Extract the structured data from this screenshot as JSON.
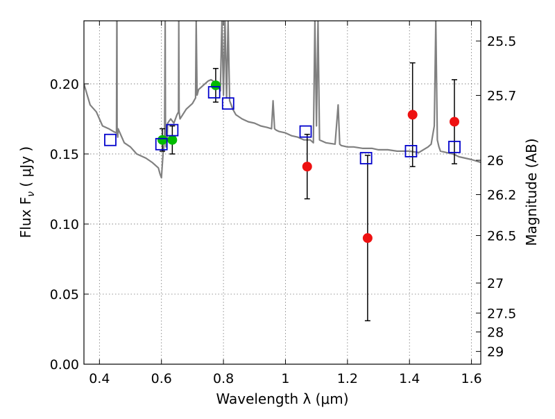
{
  "chart_data": {
    "type": "scatter",
    "xlabel": "Wavelength  λ (μm)",
    "ylabel": "Flux  F",
    "ylabel_sub": "ν",
    "ylabel_unit": " ( μJy )",
    "ylabel_right": "Magnitude (AB)",
    "xlim": [
      0.35,
      1.63
    ],
    "ylim": [
      0.0,
      0.245
    ],
    "grid": true,
    "x_ticks": [
      0.4,
      0.6,
      0.8,
      1.0,
      1.2,
      1.4,
      1.6
    ],
    "x_tick_labels": [
      "0.4",
      "0.6",
      "0.8",
      "1",
      "1.2",
      "1.4",
      "1.6"
    ],
    "y_ticks": [
      0.0,
      0.05,
      0.1,
      0.15,
      0.2
    ],
    "y_tick_labels": [
      "0.00",
      "0.05",
      "0.10",
      "0.15",
      "0.20"
    ],
    "right_ticks": [
      {
        "label": "25.5",
        "flux": 0.2306
      },
      {
        "label": "25.7",
        "flux": 0.1918
      },
      {
        "label": "26",
        "flux": 0.1455
      },
      {
        "label": "26.2",
        "flux": 0.121
      },
      {
        "label": "26.5",
        "flux": 0.0918
      },
      {
        "label": "27",
        "flux": 0.0579
      },
      {
        "label": "27.5",
        "flux": 0.0365
      },
      {
        "label": "28",
        "flux": 0.023
      },
      {
        "label": "29",
        "flux": 0.0091
      }
    ],
    "series": [
      {
        "name": "",
        "kind": "model-spectrum",
        "color": "#808080",
        "x": [
          0.35,
          0.37,
          0.39,
          0.41,
          0.43,
          0.445,
          0.455,
          0.456,
          0.4565,
          0.457,
          0.459,
          0.46,
          0.48,
          0.5,
          0.52,
          0.55,
          0.57,
          0.58,
          0.59,
          0.595,
          0.6,
          0.605,
          0.61,
          0.612,
          0.613,
          0.615,
          0.618,
          0.62,
          0.63,
          0.64,
          0.65,
          0.655,
          0.656,
          0.657,
          0.66,
          0.68,
          0.7,
          0.71,
          0.712,
          0.715,
          0.72,
          0.73,
          0.74,
          0.75,
          0.76,
          0.78,
          0.79,
          0.795,
          0.8,
          0.805,
          0.81,
          0.815,
          0.82,
          0.825,
          0.83,
          0.84,
          0.86,
          0.88,
          0.9,
          0.92,
          0.94,
          0.955,
          0.96,
          0.965,
          0.97,
          0.98,
          1.0,
          1.02,
          1.04,
          1.05,
          1.06,
          1.08,
          1.09,
          1.095,
          1.1,
          1.105,
          1.11,
          1.13,
          1.16,
          1.17,
          1.175,
          1.18,
          1.2,
          1.22,
          1.25,
          1.28,
          1.3,
          1.33,
          1.36,
          1.4,
          1.43,
          1.46,
          1.47,
          1.48,
          1.485,
          1.49,
          1.495,
          1.5,
          1.52,
          1.54,
          1.56,
          1.58,
          1.6,
          1.63
        ],
        "y": [
          0.2,
          0.185,
          0.18,
          0.17,
          0.168,
          0.166,
          0.165,
          0.245,
          0.245,
          0.165,
          0.162,
          0.168,
          0.158,
          0.155,
          0.15,
          0.147,
          0.144,
          0.142,
          0.14,
          0.136,
          0.133,
          0.15,
          0.16,
          0.245,
          0.17,
          0.155,
          0.16,
          0.172,
          0.175,
          0.172,
          0.178,
          0.18,
          0.245,
          0.18,
          0.175,
          0.182,
          0.186,
          0.19,
          0.245,
          0.192,
          0.196,
          0.198,
          0.2,
          0.202,
          0.203,
          0.2,
          0.195,
          0.245,
          0.192,
          0.245,
          0.19,
          0.245,
          0.188,
          0.185,
          0.182,
          0.178,
          0.175,
          0.173,
          0.172,
          0.17,
          0.169,
          0.168,
          0.188,
          0.168,
          0.167,
          0.166,
          0.165,
          0.163,
          0.162,
          0.161,
          0.16,
          0.16,
          0.158,
          0.245,
          0.17,
          0.245,
          0.16,
          0.158,
          0.157,
          0.185,
          0.157,
          0.156,
          0.155,
          0.155,
          0.154,
          0.154,
          0.153,
          0.153,
          0.152,
          0.152,
          0.151,
          0.155,
          0.157,
          0.17,
          0.245,
          0.16,
          0.155,
          0.152,
          0.151,
          0.15,
          0.148,
          0.147,
          0.146,
          0.144
        ]
      },
      {
        "name": "",
        "kind": "photometry-optical",
        "color": "#00bb00",
        "points": [
          {
            "x": 0.603,
            "y": 0.16,
            "err": 0.008
          },
          {
            "x": 0.635,
            "y": 0.16,
            "err": 0.01
          },
          {
            "x": 0.775,
            "y": 0.199,
            "err": 0.012
          }
        ]
      },
      {
        "name": "",
        "kind": "photometry-nir",
        "color": "#ee1111",
        "points": [
          {
            "x": 1.07,
            "y": 0.141,
            "err": 0.023
          },
          {
            "x": 1.265,
            "y": 0.09,
            "err": 0.059
          },
          {
            "x": 1.41,
            "y": 0.178,
            "err": 0.037
          },
          {
            "x": 1.545,
            "y": 0.173,
            "err": 0.03
          }
        ]
      },
      {
        "name": "",
        "kind": "model-band-flux",
        "color": "#0000cc",
        "points": [
          {
            "x": 0.435,
            "y": 0.16
          },
          {
            "x": 0.6,
            "y": 0.157
          },
          {
            "x": 0.635,
            "y": 0.167
          },
          {
            "x": 0.77,
            "y": 0.194
          },
          {
            "x": 0.815,
            "y": 0.186
          },
          {
            "x": 1.065,
            "y": 0.166
          },
          {
            "x": 1.26,
            "y": 0.147
          },
          {
            "x": 1.405,
            "y": 0.152
          },
          {
            "x": 1.545,
            "y": 0.155
          }
        ]
      }
    ]
  }
}
